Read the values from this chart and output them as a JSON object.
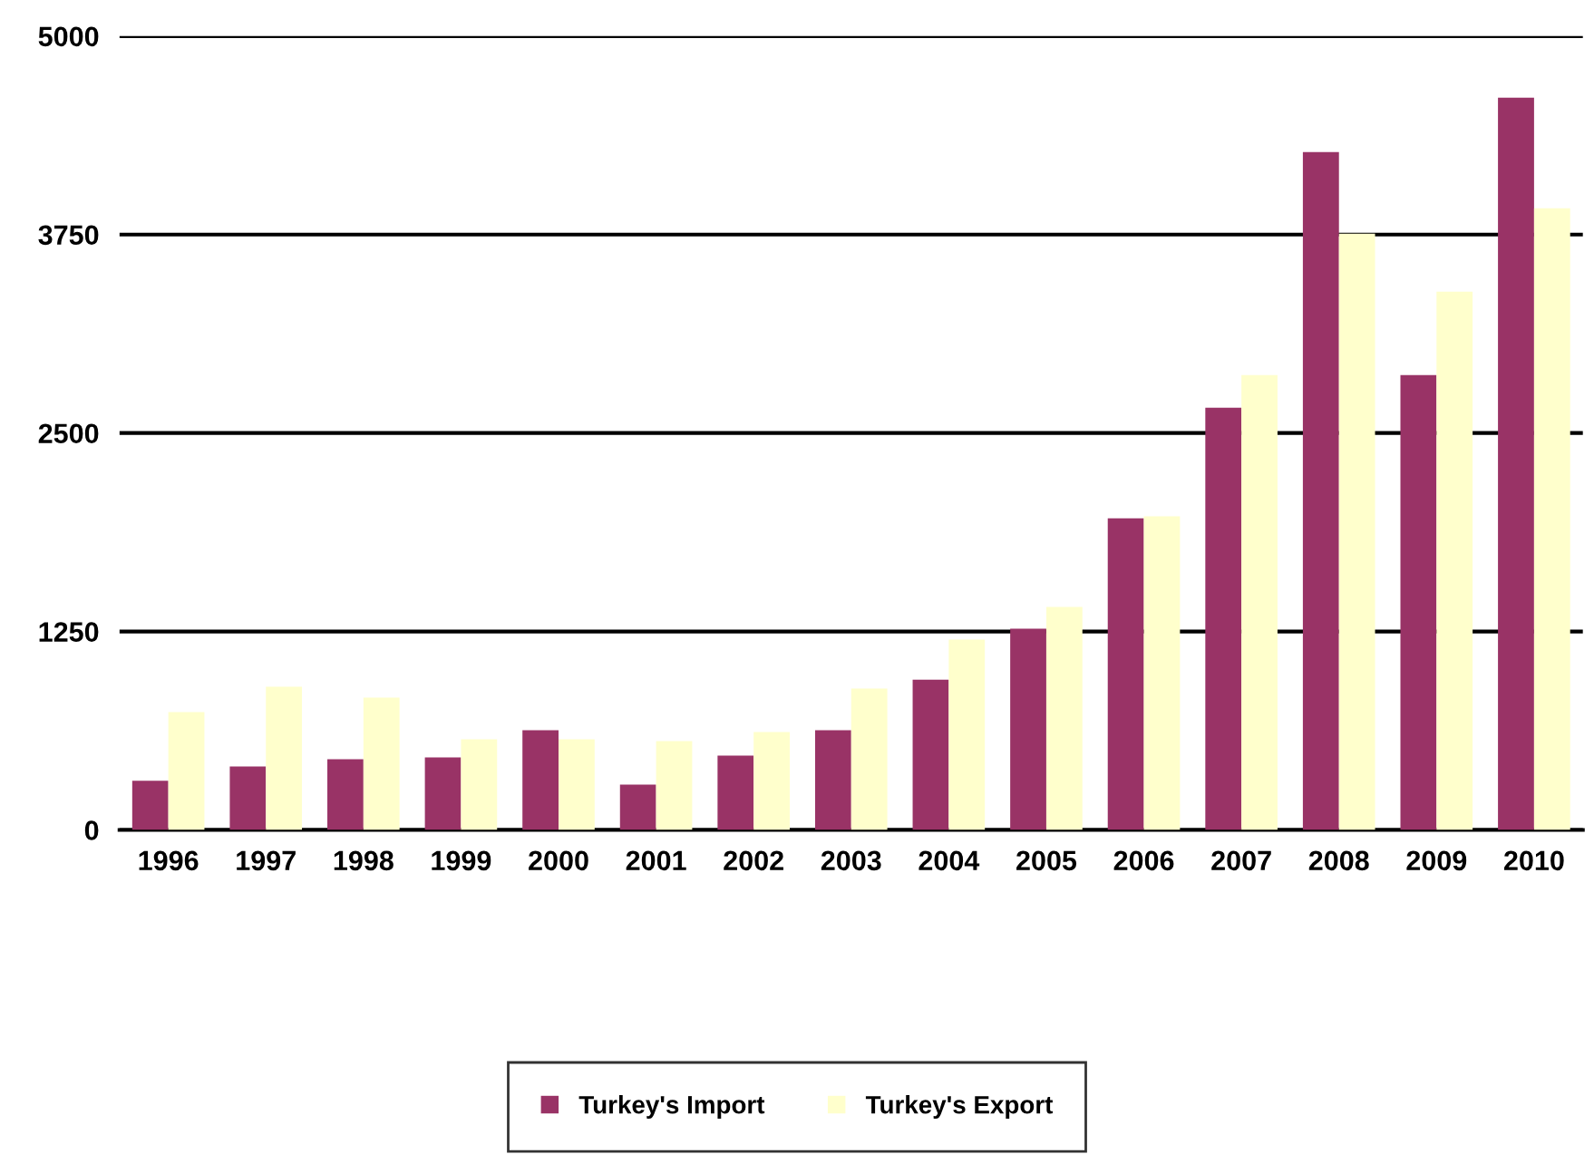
{
  "chart_data": {
    "type": "bar",
    "categories": [
      "1996",
      "1997",
      "1998",
      "1999",
      "2000",
      "2001",
      "2002",
      "2003",
      "2004",
      "2005",
      "2006",
      "2007",
      "2008",
      "2009",
      "2010"
    ],
    "series": [
      {
        "name": "Turkey's Import",
        "color": "#993366",
        "values": [
          310,
          400,
          445,
          457,
          628,
          285,
          468,
          628,
          947,
          1267,
          1963,
          2660,
          4269,
          2865,
          4612
        ]
      },
      {
        "name": "Turkey's Export",
        "color": "#ffffcc",
        "values": [
          742,
          902,
          833,
          571,
          571,
          559,
          616,
          890,
          1199,
          1404,
          1975,
          2865,
          3756,
          3390,
          3915
        ]
      }
    ],
    "ylim": [
      0,
      5000
    ],
    "yticks": [
      0,
      1250,
      2500,
      3750,
      5000
    ],
    "grid": "y",
    "legend": "bottom"
  }
}
